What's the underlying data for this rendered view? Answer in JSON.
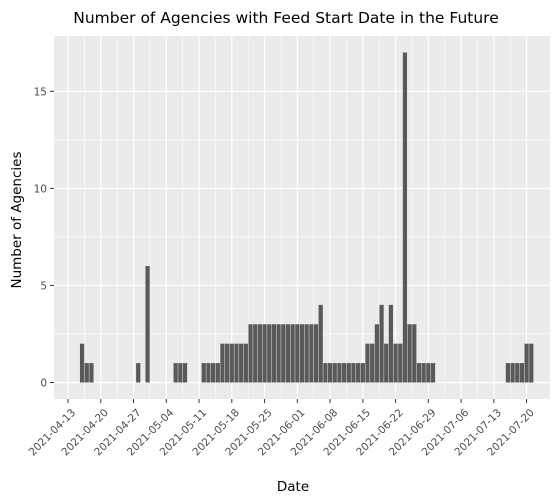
{
  "chart_data": {
    "type": "bar",
    "title": "Number of Agencies with Feed Start Date in the Future",
    "xlabel": "Date",
    "ylabel": "Number of Agencies",
    "xlim": [
      "2021-04-10",
      "2021-07-25"
    ],
    "ylim": [
      -0.85,
      17.85
    ],
    "x_ticks": [
      "2021-04-13",
      "2021-04-20",
      "2021-04-27",
      "2021-05-04",
      "2021-05-11",
      "2021-05-18",
      "2021-05-25",
      "2021-06-01",
      "2021-06-08",
      "2021-06-15",
      "2021-06-22",
      "2021-06-29",
      "2021-07-06",
      "2021-07-13",
      "2021-07-20"
    ],
    "y_ticks": [
      0,
      5,
      10,
      15
    ],
    "grid": true,
    "bar_color": "#595959",
    "panel_color": "#ebebeb",
    "grid_color": "#ffffff",
    "x": [
      "2021-04-16",
      "2021-04-17",
      "2021-04-18",
      "2021-04-19",
      "2021-04-20",
      "2021-04-21",
      "2021-04-22",
      "2021-04-23",
      "2021-04-24",
      "2021-04-25",
      "2021-04-26",
      "2021-04-27",
      "2021-04-28",
      "2021-04-29",
      "2021-04-30",
      "2021-05-01",
      "2021-05-02",
      "2021-05-03",
      "2021-05-04",
      "2021-05-05",
      "2021-05-06",
      "2021-05-07",
      "2021-05-08",
      "2021-05-09",
      "2021-05-10",
      "2021-05-11",
      "2021-05-12",
      "2021-05-13",
      "2021-05-14",
      "2021-05-15",
      "2021-05-16",
      "2021-05-17",
      "2021-05-18",
      "2021-05-19",
      "2021-05-20",
      "2021-05-21",
      "2021-05-22",
      "2021-05-23",
      "2021-05-24",
      "2021-05-25",
      "2021-05-26",
      "2021-05-27",
      "2021-05-28",
      "2021-05-29",
      "2021-05-30",
      "2021-05-31",
      "2021-06-01",
      "2021-06-02",
      "2021-06-03",
      "2021-06-04",
      "2021-06-05",
      "2021-06-06",
      "2021-06-07",
      "2021-06-08",
      "2021-06-09",
      "2021-06-10",
      "2021-06-11",
      "2021-06-12",
      "2021-06-13",
      "2021-06-14",
      "2021-06-15",
      "2021-06-16",
      "2021-06-17",
      "2021-06-18",
      "2021-06-19",
      "2021-06-20",
      "2021-06-21",
      "2021-06-22",
      "2021-06-23",
      "2021-06-24",
      "2021-06-25",
      "2021-06-26",
      "2021-06-27",
      "2021-06-28",
      "2021-06-29",
      "2021-06-30",
      "2021-07-01",
      "2021-07-02",
      "2021-07-03",
      "2021-07-04",
      "2021-07-05",
      "2021-07-06",
      "2021-07-07",
      "2021-07-08",
      "2021-07-09",
      "2021-07-10",
      "2021-07-11",
      "2021-07-12",
      "2021-07-13",
      "2021-07-14",
      "2021-07-15",
      "2021-07-16",
      "2021-07-17",
      "2021-07-18",
      "2021-07-19",
      "2021-07-20",
      "2021-07-21"
    ],
    "values": [
      2,
      1,
      1,
      0,
      0,
      0,
      0,
      0,
      0,
      0,
      0,
      0,
      1,
      0,
      6,
      0,
      0,
      0,
      0,
      0,
      1,
      1,
      1,
      0,
      0,
      0,
      1,
      1,
      1,
      1,
      2,
      2,
      2,
      2,
      2,
      2,
      3,
      3,
      3,
      3,
      3,
      3,
      3,
      3,
      3,
      3,
      3,
      3,
      3,
      3,
      3,
      4,
      1,
      1,
      1,
      1,
      1,
      1,
      1,
      1,
      1,
      2,
      2,
      3,
      4,
      2,
      4,
      2,
      2,
      17,
      3,
      3,
      1,
      1,
      1,
      1,
      0,
      0,
      0,
      0,
      0,
      0,
      0,
      0,
      0,
      0,
      0,
      0,
      0,
      0,
      0,
      1,
      1,
      1,
      1,
      2,
      2
    ]
  }
}
